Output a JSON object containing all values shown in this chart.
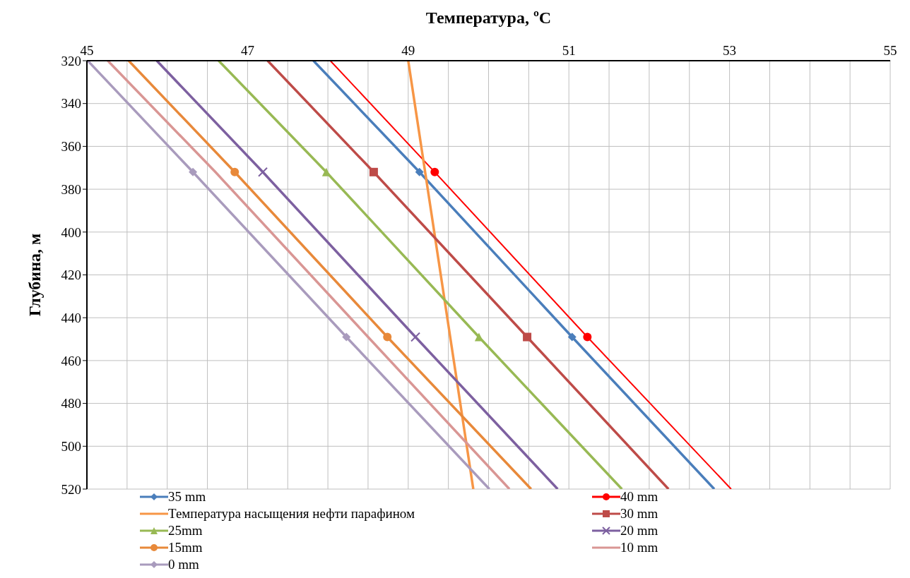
{
  "chart_data": {
    "type": "line",
    "xlabel": "Температура, ºC",
    "ylabel": "Глубина, м",
    "xlim": [
      45,
      55
    ],
    "xticks": [
      45,
      {
        "value": 45.5,
        "label": null
      },
      {
        "value": 46,
        "label": null
      },
      {
        "value": 46.5,
        "label": null
      },
      47,
      {
        "value": 47.5,
        "label": null
      },
      {
        "value": 48,
        "label": null
      },
      {
        "value": 48.5,
        "label": null
      },
      49,
      {
        "value": 49.5,
        "label": null
      },
      {
        "value": 50,
        "label": null
      },
      {
        "value": 50.5,
        "label": null
      },
      51,
      {
        "value": 51.5,
        "label": null
      },
      {
        "value": 52,
        "label": null
      },
      {
        "value": 52.5,
        "label": null
      },
      53,
      {
        "value": 53.5,
        "label": null
      },
      {
        "value": 54,
        "label": null
      },
      {
        "value": 54.5,
        "label": null
      },
      55
    ],
    "ylim": [
      520,
      320
    ],
    "yticks": [
      320,
      340,
      360,
      380,
      400,
      420,
      440,
      460,
      480,
      500,
      520
    ],
    "grid": true,
    "legend": "bottom",
    "series": [
      {
        "name": "35 mm",
        "color": "#4a7ebb",
        "marker": "diamond",
        "x": [
          47.82,
          49.14,
          51.04,
          52.81
        ],
        "values": [
          320,
          372,
          449,
          520
        ]
      },
      {
        "name": "40 mm",
        "color": "#ff0000",
        "marker": "circle",
        "x": [
          48.03,
          49.33,
          51.23,
          53.02
        ],
        "values": [
          320,
          372,
          449,
          520
        ]
      },
      {
        "name": "Температура насыщения нефти парафином",
        "color": "#f79646",
        "marker": "none",
        "x": [
          49.0,
          49.81
        ],
        "values": [
          320,
          520
        ]
      },
      {
        "name": "30 mm",
        "color": "#be4b48",
        "marker": "square",
        "x": [
          47.25,
          48.57,
          50.48,
          52.24
        ],
        "values": [
          320,
          372,
          449,
          520
        ]
      },
      {
        "name": "25mm",
        "color": "#98b954",
        "marker": "triangle",
        "x": [
          46.64,
          47.98,
          49.88,
          51.66
        ],
        "values": [
          320,
          372,
          449,
          520
        ]
      },
      {
        "name": "20 mm",
        "color": "#7d60a0",
        "marker": "cross",
        "x": [
          45.87,
          47.19,
          49.09,
          50.86
        ],
        "values": [
          320,
          372,
          449,
          520
        ]
      },
      {
        "name": "15mm",
        "color": "#e8893a",
        "marker": "circle",
        "x": [
          45.52,
          46.84,
          48.74,
          50.53
        ],
        "values": [
          320,
          372,
          449,
          520
        ]
      },
      {
        "name": "10 mm",
        "color": "#d99694",
        "marker": "none",
        "x": [
          45.26,
          46.6,
          48.5,
          50.26
        ],
        "values": [
          320,
          372,
          449,
          520
        ]
      },
      {
        "name": "0 mm",
        "color": "#a99bbd",
        "marker": "diamond",
        "x": [
          45.01,
          46.32,
          48.23,
          50.01
        ],
        "values": [
          320,
          372,
          449,
          520
        ]
      }
    ]
  }
}
